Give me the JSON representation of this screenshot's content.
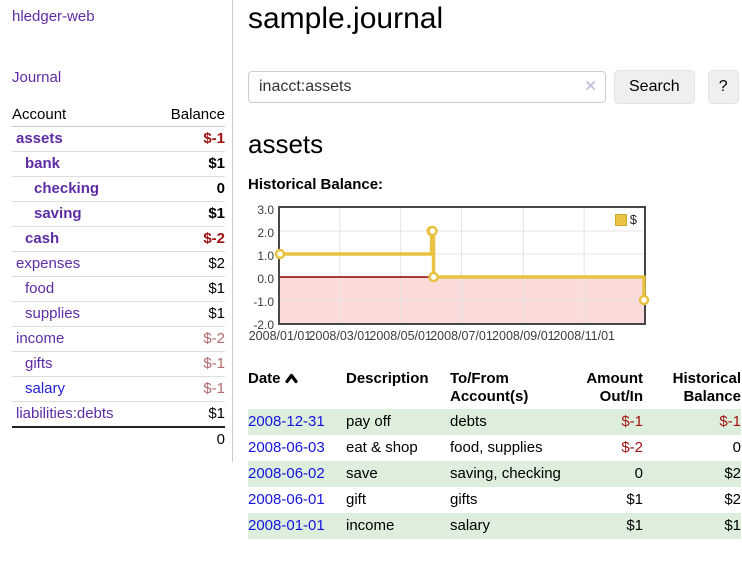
{
  "sidebar": {
    "brand": "hledger-web",
    "journal_link": "Journal",
    "accounts": {
      "col_account": "Account",
      "col_balance": "Balance",
      "rows": [
        {
          "name": "assets",
          "balance": "$-1"
        },
        {
          "name": "bank",
          "balance": "$1"
        },
        {
          "name": "checking",
          "balance": "0"
        },
        {
          "name": "saving",
          "balance": "$1"
        },
        {
          "name": "cash",
          "balance": "$-2"
        },
        {
          "name": "expenses",
          "balance": "$2"
        },
        {
          "name": "food",
          "balance": "$1"
        },
        {
          "name": "supplies",
          "balance": "$1"
        },
        {
          "name": "income",
          "balance": "$-2"
        },
        {
          "name": "gifts",
          "balance": "$-1"
        },
        {
          "name": "salary",
          "balance": "$-1"
        },
        {
          "name": "liabilities:debts",
          "balance": "$1"
        }
      ],
      "total": "0"
    }
  },
  "main": {
    "title": "sample.journal",
    "search": {
      "value": "inacct:assets",
      "clear_icon": "✕",
      "search_button": "Search",
      "help_button": "?"
    },
    "account_heading": "assets",
    "chart_heading": "Historical Balance:"
  },
  "chart_data": {
    "type": "line",
    "title": "Historical Balance:",
    "series": [
      {
        "name": "$",
        "color": "#e8c240",
        "step": true,
        "points": [
          [
            "2008-01-01",
            1
          ],
          [
            "2008-06-01",
            2
          ],
          [
            "2008-06-02",
            2
          ],
          [
            "2008-06-03",
            0
          ],
          [
            "2008-12-31",
            -1
          ]
        ]
      }
    ],
    "x_range": [
      "2008-01-01",
      "2008-12-31"
    ],
    "x_ticks": [
      "2008/01/01",
      "2008/03/01",
      "2008/05/01",
      "2008/07/01",
      "2008/09/01",
      "2008/11/01"
    ],
    "y_ticks": [
      3.0,
      2.0,
      1.0,
      0.0,
      -1.0,
      -2.0
    ],
    "ylim": [
      -2,
      3
    ],
    "grid": true,
    "legend": {
      "label": "$",
      "position": "top-right"
    },
    "negative_region_color": "#fbdada",
    "zero_line_color": "#8b0000"
  },
  "register": {
    "headers": {
      "date": "Date",
      "description": "Description",
      "tofrom": "To/From Account(s)",
      "amount": "Amount Out/In",
      "historical": "Historical Balance"
    },
    "rows": [
      {
        "date": "2008-12-31",
        "description": "pay off",
        "accounts": "debts",
        "amount": "$-1",
        "balance": "$-1"
      },
      {
        "date": "2008-06-03",
        "description": "eat & shop",
        "accounts": "food, supplies",
        "amount": "$-2",
        "balance": "0"
      },
      {
        "date": "2008-06-02",
        "description": "save",
        "accounts": "saving, checking",
        "amount": "0",
        "balance": "$2"
      },
      {
        "date": "2008-06-01",
        "description": "gift",
        "accounts": "gifts",
        "amount": "$1",
        "balance": "$2"
      },
      {
        "date": "2008-01-01",
        "description": "income",
        "accounts": "salary",
        "amount": "$1",
        "balance": "$1"
      }
    ]
  }
}
